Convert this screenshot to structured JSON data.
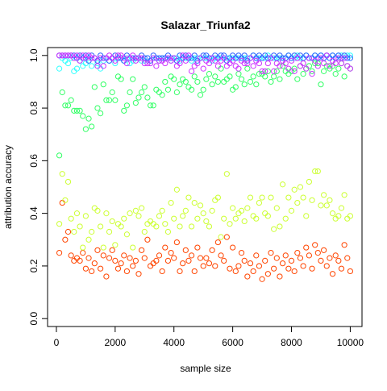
{
  "chart_data": {
    "type": "scatter",
    "title": "Salazar_Triunfa2",
    "xlabel": "sample size",
    "ylabel": "attribution accuracy",
    "xlim": [
      -300,
      10400
    ],
    "ylim": [
      -0.03,
      1.03
    ],
    "xticks": [
      0,
      2000,
      4000,
      6000,
      8000,
      10000
    ],
    "yticks": [
      0.0,
      0.2,
      0.4,
      0.6,
      0.8,
      1.0
    ],
    "xtick_labels": [
      "0",
      "2000",
      "4000",
      "6000",
      "8000",
      "10000"
    ],
    "ytick_labels": [
      "0.0",
      "0.2",
      "0.4",
      "0.6",
      "0.8",
      "1.0"
    ],
    "marker": "open-circle",
    "grid": false,
    "x": [
      100,
      200,
      300,
      400,
      500,
      600,
      700,
      800,
      900,
      1000,
      1100,
      1200,
      1300,
      1400,
      1500,
      1600,
      1700,
      1800,
      1900,
      2000,
      2100,
      2200,
      2300,
      2400,
      2500,
      2600,
      2700,
      2800,
      2900,
      3000,
      3100,
      3200,
      3300,
      3400,
      3500,
      3600,
      3700,
      3800,
      3900,
      4000,
      4100,
      4200,
      4300,
      4400,
      4500,
      4600,
      4700,
      4800,
      4900,
      5000,
      5100,
      5200,
      5300,
      5400,
      5500,
      5600,
      5700,
      5800,
      5900,
      6000,
      6100,
      6200,
      6300,
      6400,
      6500,
      6600,
      6700,
      6800,
      6900,
      7000,
      7100,
      7200,
      7300,
      7400,
      7500,
      7600,
      7700,
      7800,
      7900,
      8000,
      8100,
      8200,
      8300,
      8400,
      8500,
      8600,
      8700,
      8800,
      8900,
      9000,
      9100,
      9200,
      9300,
      9400,
      9500,
      9600,
      9700,
      9800,
      9900,
      10000
    ],
    "series": [
      {
        "color": "#FF4500",
        "values": [
          0.25,
          0.44,
          0.3,
          0.33,
          0.24,
          0.22,
          0.23,
          0.22,
          0.25,
          0.19,
          0.23,
          0.18,
          0.21,
          0.26,
          0.19,
          0.24,
          0.16,
          0.23,
          0.26,
          0.22,
          0.19,
          0.21,
          0.24,
          0.18,
          0.23,
          0.2,
          0.22,
          0.17,
          0.26,
          0.23,
          0.3,
          0.2,
          0.21,
          0.22,
          0.24,
          0.18,
          0.27,
          0.22,
          0.25,
          0.23,
          0.29,
          0.18,
          0.21,
          0.26,
          0.22,
          0.24,
          0.18,
          0.27,
          0.23,
          0.2,
          0.23,
          0.21,
          0.26,
          0.2,
          0.29,
          0.24,
          0.22,
          0.31,
          0.19,
          0.27,
          0.18,
          0.2,
          0.25,
          0.22,
          0.16,
          0.21,
          0.18,
          0.24,
          0.2,
          0.15,
          0.22,
          0.17,
          0.25,
          0.19,
          0.23,
          0.16,
          0.21,
          0.24,
          0.19,
          0.22,
          0.18,
          0.25,
          0.23,
          0.2,
          0.27,
          0.24,
          0.19,
          0.28,
          0.25,
          0.22,
          0.26,
          0.2,
          0.23,
          0.17,
          0.24,
          0.22,
          0.19,
          0.28,
          0.23,
          0.18
        ]
      },
      {
        "color": "#CCFF33",
        "values": [
          0.36,
          0.55,
          0.45,
          0.52,
          0.38,
          0.33,
          0.4,
          0.35,
          0.27,
          0.39,
          0.3,
          0.33,
          0.42,
          0.41,
          0.35,
          0.27,
          0.4,
          0.33,
          0.37,
          0.28,
          0.36,
          0.35,
          0.38,
          0.32,
          0.4,
          0.27,
          0.41,
          0.39,
          0.42,
          0.33,
          0.36,
          0.37,
          0.36,
          0.35,
          0.39,
          0.41,
          0.36,
          0.33,
          0.44,
          0.38,
          0.49,
          0.35,
          0.39,
          0.41,
          0.46,
          0.35,
          0.44,
          0.38,
          0.43,
          0.4,
          0.37,
          0.35,
          0.41,
          0.45,
          0.46,
          0.31,
          0.38,
          0.55,
          0.36,
          0.42,
          0.38,
          0.4,
          0.41,
          0.37,
          0.42,
          0.46,
          0.39,
          0.38,
          0.44,
          0.46,
          0.4,
          0.39,
          0.46,
          0.34,
          0.42,
          0.35,
          0.51,
          0.38,
          0.46,
          0.41,
          0.49,
          0.44,
          0.5,
          0.46,
          0.39,
          0.52,
          0.45,
          0.56,
          0.56,
          0.43,
          0.47,
          0.43,
          0.45,
          0.4,
          0.38,
          0.39,
          0.42,
          0.47,
          0.38,
          0.39
        ]
      },
      {
        "color": "#33FF66",
        "values": [
          0.62,
          0.86,
          0.81,
          0.81,
          0.83,
          0.79,
          0.79,
          0.79,
          0.77,
          0.72,
          0.76,
          0.73,
          0.88,
          0.8,
          0.78,
          0.89,
          0.83,
          0.83,
          0.86,
          0.83,
          0.92,
          0.91,
          0.79,
          0.81,
          0.86,
          0.91,
          0.82,
          0.84,
          0.86,
          0.88,
          0.84,
          0.81,
          0.81,
          0.87,
          0.86,
          0.85,
          0.9,
          0.87,
          0.92,
          0.91,
          0.86,
          0.89,
          0.91,
          0.9,
          0.88,
          0.87,
          0.92,
          0.9,
          0.85,
          0.87,
          0.91,
          0.93,
          0.89,
          0.92,
          0.9,
          0.95,
          0.9,
          0.91,
          0.92,
          0.87,
          0.88,
          0.93,
          0.91,
          0.89,
          0.95,
          0.9,
          0.92,
          0.89,
          0.93,
          0.93,
          0.92,
          0.94,
          0.9,
          0.92,
          0.94,
          0.91,
          0.96,
          0.94,
          0.93,
          0.94,
          0.95,
          0.91,
          0.96,
          0.93,
          0.95,
          0.96,
          0.94,
          0.97,
          0.97,
          0.89,
          0.94,
          0.96,
          0.95,
          0.96,
          0.93,
          0.95,
          0.97,
          0.92,
          0.96,
          0.95
        ]
      },
      {
        "color": "#33FFFF",
        "values": [
          0.95,
          0.99,
          0.98,
          0.97,
          0.99,
          0.94,
          0.95,
          0.98,
          0.96,
          0.97,
          0.99,
          0.96,
          0.99,
          0.97,
          0.95,
          0.98,
          0.99,
          0.98,
          0.99,
          0.97,
          0.99,
          0.99,
          0.98,
          0.99,
          0.97,
          0.98,
          0.99,
          0.99,
          0.98,
          0.98,
          0.99,
          0.98,
          0.99,
          0.99,
          0.98,
          0.99,
          0.99,
          0.99,
          0.98,
          0.99,
          0.99,
          0.98,
          0.99,
          0.99,
          0.99,
          0.98,
          0.99,
          0.99,
          0.99,
          0.99,
          0.99,
          0.99,
          0.98,
          0.99,
          0.99,
          0.99,
          0.99,
          0.99,
          0.99,
          0.99,
          0.99,
          0.99,
          0.99,
          0.99,
          0.99,
          0.99,
          1.0,
          0.99,
          0.99,
          0.99,
          0.99,
          1.0,
          0.99,
          0.99,
          0.99,
          0.99,
          0.99,
          0.99,
          1.0,
          0.99,
          0.99,
          1.0,
          0.99,
          0.99,
          1.0,
          0.99,
          0.99,
          1.0,
          0.99,
          1.0,
          0.99,
          1.0,
          0.99,
          1.0,
          0.99,
          1.0,
          1.0,
          0.99,
          1.0,
          1.0
        ]
      },
      {
        "color": "#3366FF",
        "values": [
          1.0,
          1.0,
          1.0,
          1.0,
          1.0,
          1.0,
          0.99,
          1.0,
          0.99,
          1.0,
          0.98,
          1.0,
          0.99,
          0.98,
          1.0,
          0.99,
          0.99,
          0.98,
          0.99,
          1.0,
          0.99,
          0.99,
          0.98,
          1.0,
          0.99,
          0.99,
          0.99,
          0.99,
          1.0,
          0.99,
          0.99,
          0.98,
          1.0,
          0.99,
          0.99,
          0.99,
          0.99,
          1.0,
          0.99,
          0.99,
          0.98,
          1.0,
          0.99,
          1.0,
          0.99,
          0.99,
          1.0,
          0.98,
          0.99,
          1.0,
          1.0,
          0.99,
          0.99,
          1.0,
          0.99,
          1.0,
          1.0,
          0.98,
          0.99,
          1.0,
          0.99,
          1.0,
          0.99,
          1.0,
          0.98,
          0.99,
          1.0,
          0.99,
          1.0,
          0.99,
          1.0,
          0.99,
          0.99,
          1.0,
          0.99,
          1.0,
          0.99,
          0.99,
          1.0,
          0.99,
          1.0,
          0.99,
          1.0,
          0.99,
          1.0,
          0.99,
          0.99,
          1.0,
          0.99,
          1.0,
          0.99,
          1.0,
          0.99,
          1.0,
          0.99,
          1.0,
          0.99,
          1.0,
          0.99,
          0.99
        ]
      },
      {
        "color": "#CC33FF",
        "values": [
          1.0,
          1.0,
          1.0,
          1.0,
          1.0,
          0.99,
          1.0,
          0.98,
          1.0,
          0.99,
          1.0,
          0.99,
          0.99,
          0.96,
          0.99,
          0.96,
          0.99,
          1.0,
          0.99,
          0.98,
          1.0,
          1.0,
          0.99,
          0.97,
          0.99,
          1.0,
          0.98,
          0.99,
          0.99,
          0.97,
          0.97,
          0.97,
          0.99,
          0.96,
          0.98,
          0.98,
          0.97,
          0.99,
          0.98,
          0.99,
          0.96,
          0.97,
          1.0,
          0.98,
          1.0,
          0.94,
          0.96,
          0.97,
          0.99,
          0.95,
          0.98,
          0.97,
          0.99,
          0.98,
          0.96,
          0.98,
          0.99,
          0.96,
          0.97,
          0.98,
          0.96,
          0.95,
          0.98,
          0.97,
          0.97,
          0.99,
          0.96,
          0.98,
          0.97,
          0.94,
          0.94,
          0.97,
          0.99,
          0.94,
          0.97,
          0.96,
          0.98,
          0.97,
          0.95,
          0.98,
          0.94,
          0.99,
          0.96,
          0.97,
          0.95,
          0.99,
          0.93,
          0.98,
          0.96,
          0.99,
          0.97,
          1.0,
          0.96,
          0.98,
          0.97,
          0.99,
          0.97,
          0.99,
          0.96,
          0.95
        ]
      }
    ]
  }
}
